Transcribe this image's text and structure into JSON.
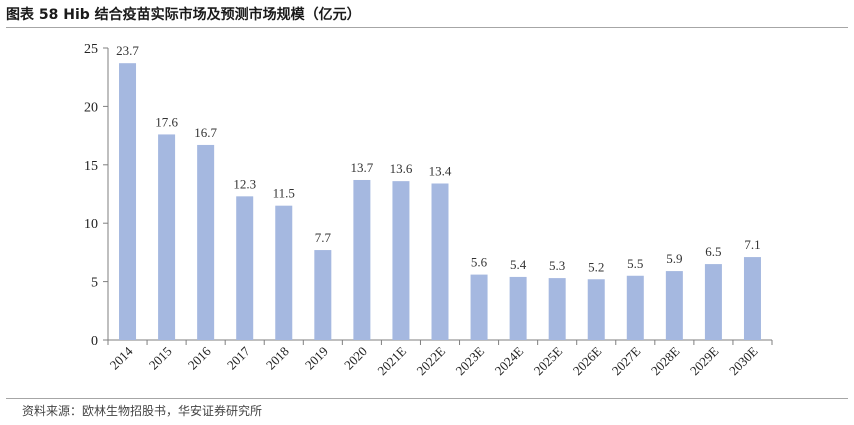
{
  "title": "图表 58 Hib 结合疫苗实际市场及预测市场规模（亿元）",
  "source": "资料来源：欧林生物招股书，华安证券研究所",
  "colors": {
    "bar": "#a5b8e0",
    "axis": "#7f7f7f",
    "text": "#222222"
  },
  "chart_data": {
    "type": "bar",
    "title": "图表 58 Hib 结合疫苗实际市场及预测市场规模（亿元）",
    "xlabel": "",
    "ylabel": "",
    "categories": [
      "2014",
      "2015",
      "2016",
      "2017",
      "2018",
      "2019",
      "2020",
      "2021E",
      "2022E",
      "2023E",
      "2024E",
      "2025E",
      "2026E",
      "2027E",
      "2028E",
      "2029E",
      "2030E"
    ],
    "values": [
      23.7,
      17.6,
      16.7,
      12.3,
      11.5,
      7.7,
      13.7,
      13.6,
      13.4,
      5.6,
      5.4,
      5.3,
      5.2,
      5.5,
      5.9,
      6.5,
      7.1
    ],
    "value_labels": [
      "23.7",
      "17.6",
      "16.7",
      "12.3",
      "11.5",
      "7.7",
      "13.7",
      "13.6",
      "13.4",
      "5.6",
      "5.4",
      "5.3",
      "5.2",
      "5.5",
      "5.9",
      "6.5",
      "7.1"
    ],
    "ylim": [
      0,
      25
    ],
    "yticks": [
      0,
      5,
      10,
      15,
      20,
      25
    ],
    "grid": false,
    "legend": "none"
  }
}
